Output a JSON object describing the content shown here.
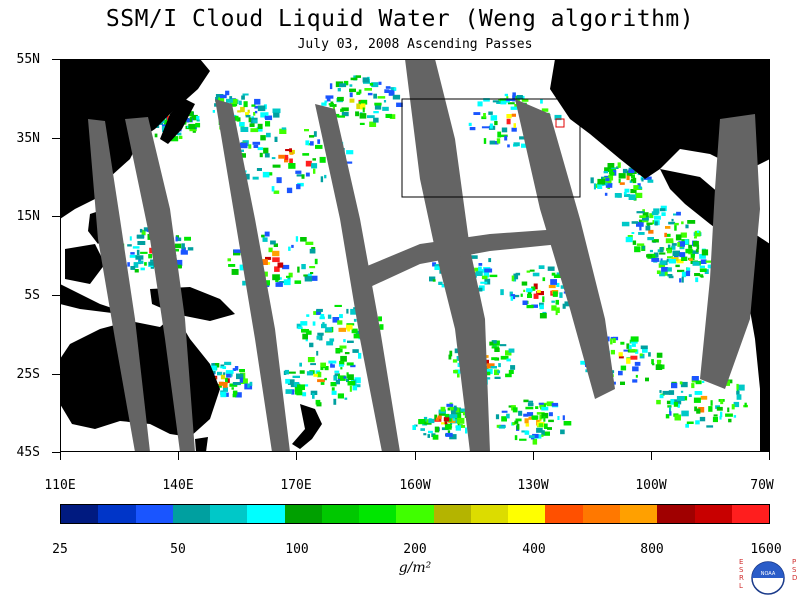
{
  "header": {
    "title": "SSM/I Cloud Liquid Water (Weng algorithm)",
    "subtitle": "July 03, 2008  Ascending Passes"
  },
  "map": {
    "latitude_labels": [
      "55N",
      "35N",
      "15N",
      "5S",
      "25S",
      "45S"
    ],
    "longitude_labels": [
      "110E",
      "140E",
      "170E",
      "160W",
      "130W",
      "100W",
      "70W"
    ],
    "colors": {
      "land": "#000000",
      "no_data_swath_gap": "#646464",
      "ocean_clear": "#ffffff"
    }
  },
  "colorbar": {
    "labels": [
      "25",
      "50",
      "100",
      "200",
      "400",
      "800",
      "1600"
    ],
    "unit": "g/m²",
    "colors": [
      "#001a80",
      "#0035c8",
      "#1a55ff",
      "#00a0a0",
      "#00c8c8",
      "#00ffff",
      "#00a000",
      "#00c800",
      "#00e600",
      "#40ff00",
      "#b4b400",
      "#dcdc00",
      "#ffff00",
      "#ff5000",
      "#ff7800",
      "#ffa000",
      "#a00000",
      "#c80000",
      "#ff1e1e"
    ]
  },
  "logo": {
    "left_letters": "ESRL",
    "right_letters": "PSD",
    "emblem_text": "NOAA"
  }
}
